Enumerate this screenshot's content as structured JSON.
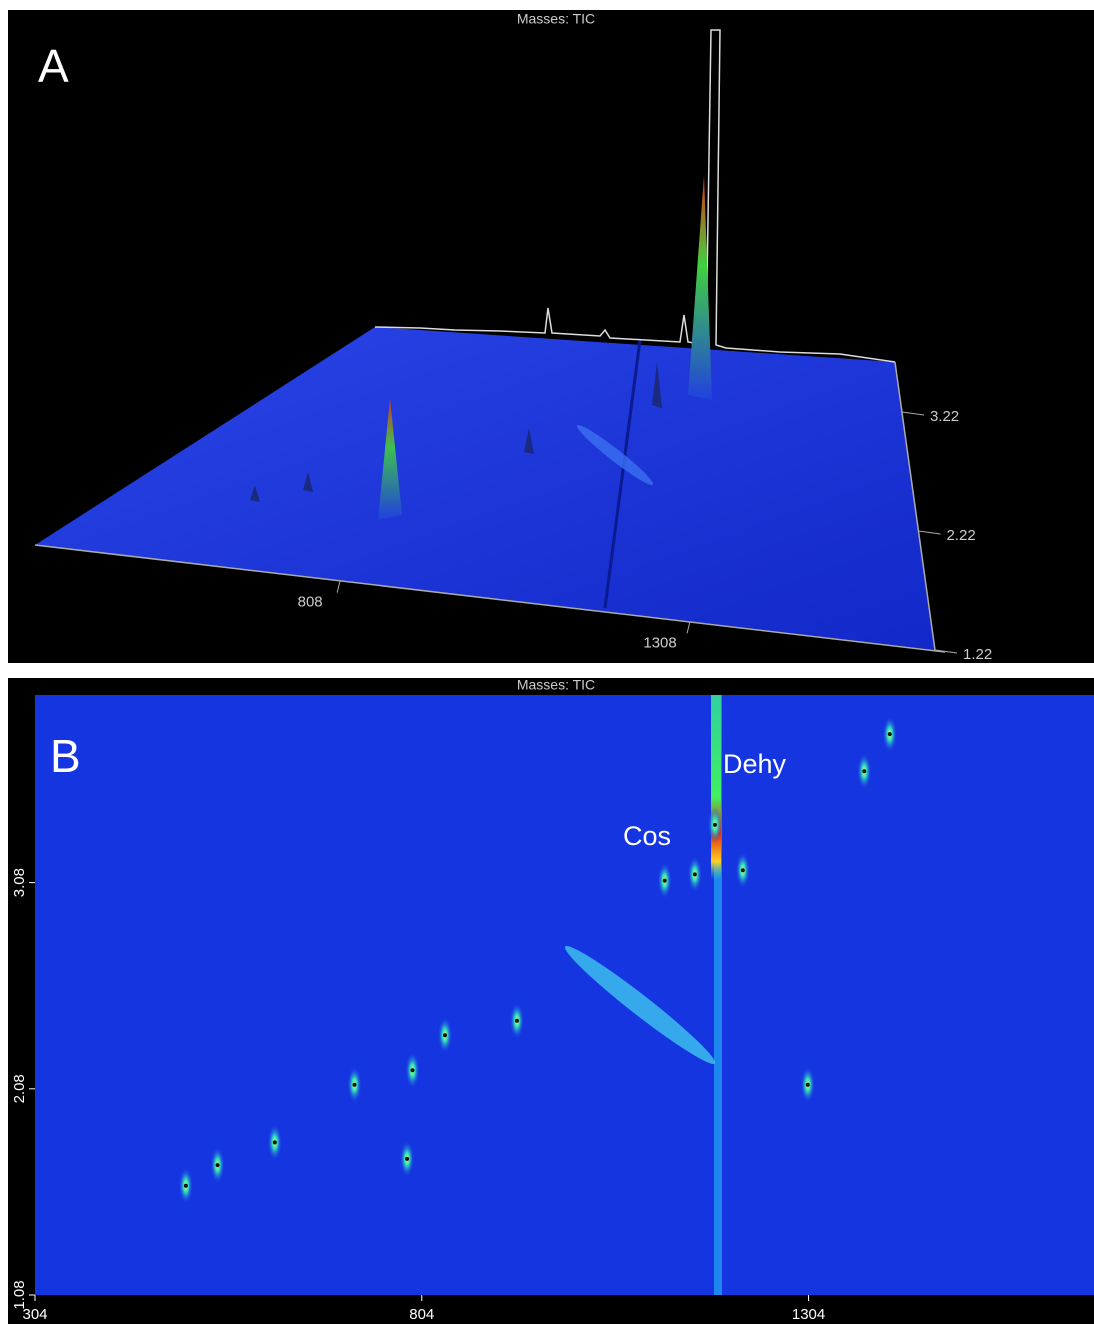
{
  "chart_data": [
    {
      "type": "surface3d",
      "title": "Masses: TIC",
      "label": "A",
      "xlim": [
        372,
        1658
      ],
      "xticks": [
        808,
        1308
      ],
      "ylim": [
        1.22,
        3.64
      ],
      "yticks": [
        1.22,
        2.22,
        3.22
      ]
    },
    {
      "type": "heatmap",
      "title": "Masses: TIC",
      "label": "B",
      "xlim": [
        304,
        1673
      ],
      "xticks": [
        304,
        804,
        1304
      ],
      "ylim": [
        1.08,
        3.99
      ],
      "yticks": [
        1.08,
        2.08,
        3.08
      ],
      "annotations": [
        "Cos",
        "Dehy"
      ],
      "x": [
        1183,
        1118,
        1219,
        785,
        614,
        540,
        927,
        499,
        792,
        717,
        834,
        1376,
        1409,
        1303,
        1157
      ],
      "y": [
        3.36,
        3.09,
        3.14,
        1.74,
        1.82,
        1.71,
        2.41,
        1.61,
        2.17,
        2.1,
        2.34,
        3.62,
        3.8,
        2.1,
        3.12
      ]
    }
  ]
}
